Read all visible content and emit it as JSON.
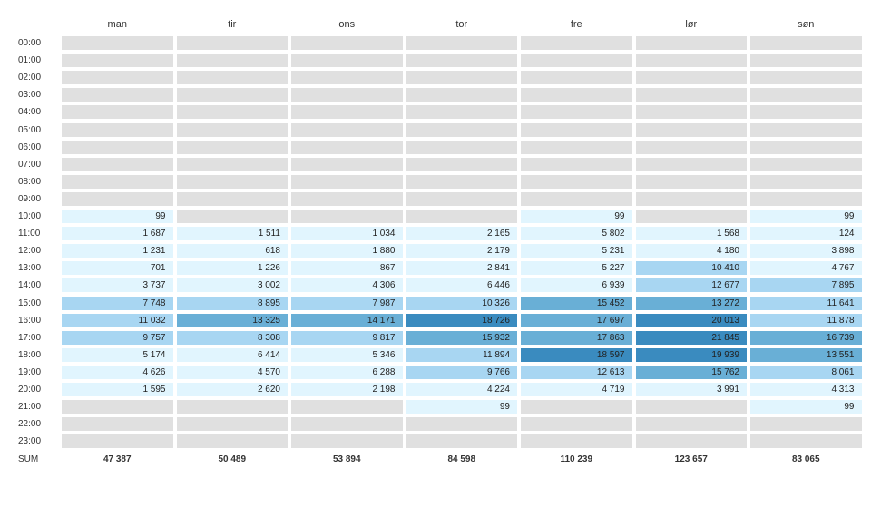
{
  "chart_data": {
    "type": "heatmap",
    "days": [
      "man",
      "tir",
      "ons",
      "tor",
      "fre",
      "lør",
      "søn"
    ],
    "hours": [
      "00:00",
      "01:00",
      "02:00",
      "03:00",
      "04:00",
      "05:00",
      "06:00",
      "07:00",
      "08:00",
      "09:00",
      "10:00",
      "11:00",
      "12:00",
      "13:00",
      "14:00",
      "15:00",
      "16:00",
      "17:00",
      "18:00",
      "19:00",
      "20:00",
      "21:00",
      "22:00",
      "23:00"
    ],
    "values": [
      [
        null,
        null,
        null,
        null,
        null,
        null,
        null
      ],
      [
        null,
        null,
        null,
        null,
        null,
        null,
        null
      ],
      [
        null,
        null,
        null,
        null,
        null,
        null,
        null
      ],
      [
        null,
        null,
        null,
        null,
        null,
        null,
        null
      ],
      [
        null,
        null,
        null,
        null,
        null,
        null,
        null
      ],
      [
        null,
        null,
        null,
        null,
        null,
        null,
        null
      ],
      [
        null,
        null,
        null,
        null,
        null,
        null,
        null
      ],
      [
        null,
        null,
        null,
        null,
        null,
        null,
        null
      ],
      [
        null,
        null,
        null,
        null,
        null,
        null,
        null
      ],
      [
        null,
        null,
        null,
        null,
        null,
        null,
        null
      ],
      [
        99,
        null,
        null,
        null,
        99,
        null,
        99
      ],
      [
        1687,
        1511,
        1034,
        2165,
        5802,
        1568,
        124
      ],
      [
        1231,
        618,
        1880,
        2179,
        5231,
        4180,
        3898
      ],
      [
        701,
        1226,
        867,
        2841,
        5227,
        10410,
        4767
      ],
      [
        3737,
        3002,
        4306,
        6446,
        6939,
        12677,
        7895
      ],
      [
        7748,
        8895,
        7987,
        10326,
        15452,
        13272,
        11641
      ],
      [
        11032,
        13325,
        14171,
        18726,
        17697,
        20013,
        11878
      ],
      [
        9757,
        8308,
        9817,
        15932,
        17863,
        21845,
        16739
      ],
      [
        5174,
        6414,
        5346,
        11894,
        18597,
        19939,
        13551
      ],
      [
        4626,
        4570,
        6288,
        9766,
        12613,
        15762,
        8061
      ],
      [
        1595,
        2620,
        2198,
        4224,
        4719,
        3991,
        4313
      ],
      [
        null,
        null,
        null,
        99,
        null,
        null,
        99
      ],
      [
        null,
        null,
        null,
        null,
        null,
        null,
        null
      ],
      [
        null,
        null,
        null,
        null,
        null,
        null,
        null
      ]
    ],
    "sum_label": "SUM",
    "sums": [
      "47 387",
      "50 489",
      "53 894",
      "84 598",
      "110 239",
      "123 657",
      "83 065"
    ],
    "colors": {
      "empty": "#e0e0e0",
      "scale": [
        "#e1f5fe",
        "#a8d6f2",
        "#69afd6",
        "#3a8bbf"
      ]
    }
  }
}
